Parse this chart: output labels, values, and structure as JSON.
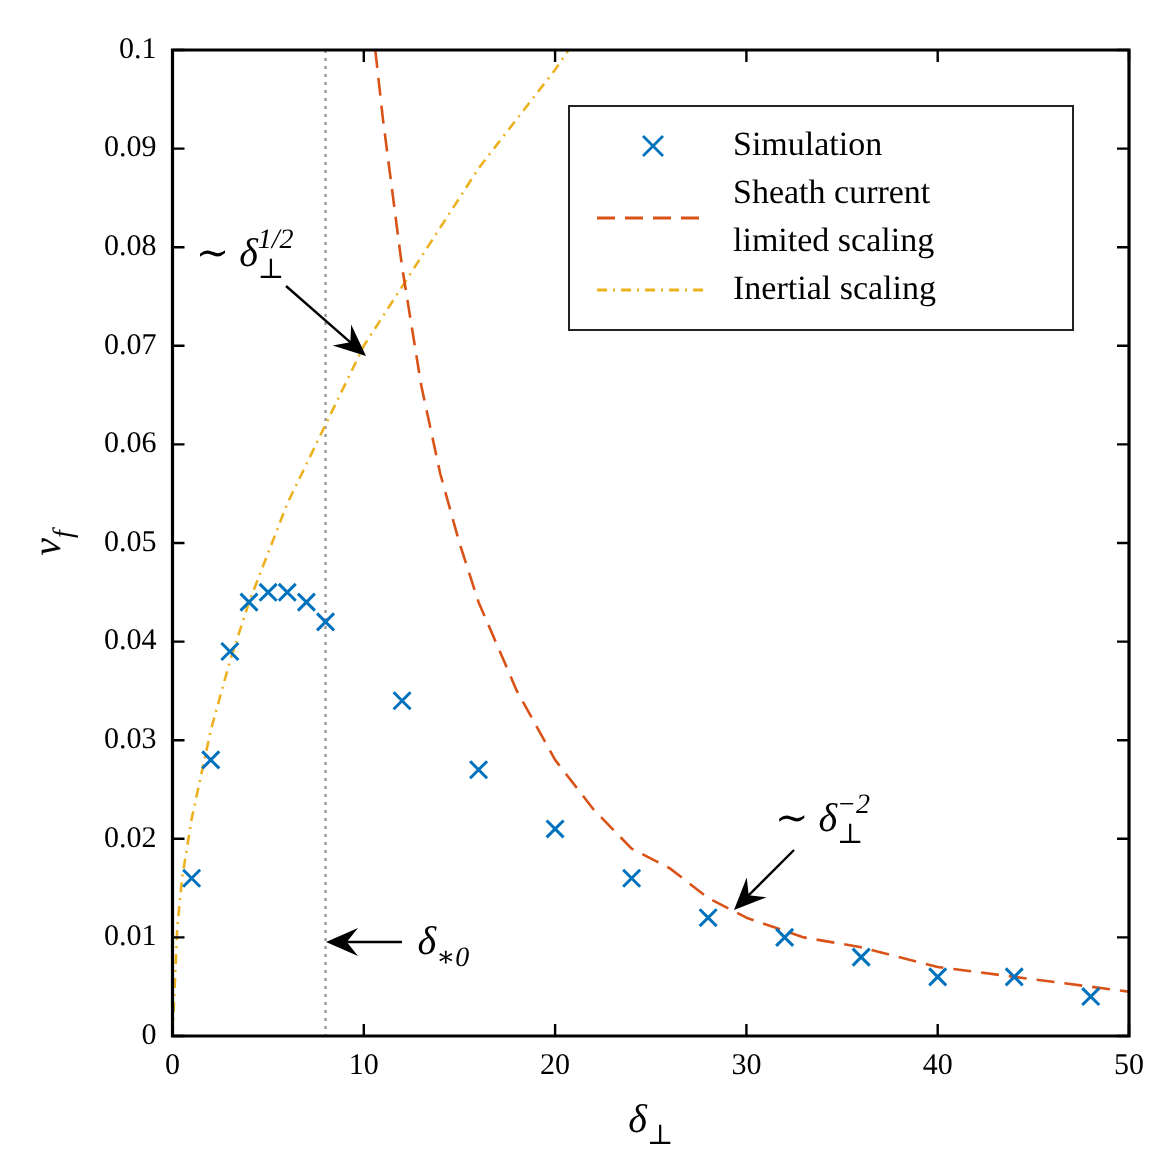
{
  "chart_data": {
    "type": "scatter",
    "xlabel": "δ$_{⊥}$",
    "ylabel": "v$_{f}$",
    "xlim": [
      0,
      50
    ],
    "xticks": [
      0,
      10,
      20,
      30,
      40,
      50
    ],
    "ylim": [
      0,
      0.1
    ],
    "yticks": [
      0,
      0.01,
      0.02,
      0.03,
      0.04,
      0.05,
      0.06,
      0.07,
      0.08,
      0.09,
      0.1
    ],
    "grid": false,
    "legend": "top right",
    "series": [
      {
        "name": "Simulation",
        "color": "#0072bd",
        "marker": "cross",
        "x": [
          1,
          2,
          3,
          4,
          5,
          6,
          7,
          8,
          12,
          16,
          20,
          24,
          28,
          32,
          36,
          40,
          44,
          48
        ],
        "values": [
          0.016,
          0.028,
          0.039,
          0.044,
          0.045,
          0.045,
          0.044,
          0.042,
          0.034,
          0.027,
          0.021,
          0.016,
          0.012,
          0.01,
          0.008,
          0.006,
          0.006,
          0.004
        ]
      },
      {
        "name": "Sheath current limited scaling",
        "type": "line",
        "color": "#d95319",
        "marker": "none",
        "line_style": "dashed",
        "x": [
          10.6,
          11,
          12,
          13,
          14,
          15,
          16,
          18,
          20,
          22,
          24,
          26,
          28,
          30,
          33,
          36,
          40,
          44,
          48,
          50
        ],
        "values": [
          0.1,
          0.093,
          0.078,
          0.066,
          0.057,
          0.05,
          0.044,
          0.035,
          0.028,
          0.023,
          0.019,
          0.017,
          0.014,
          0.012,
          0.01,
          0.009,
          0.007,
          0.006,
          0.005,
          0.0045
        ]
      },
      {
        "name": "Inertial scaling",
        "type": "line",
        "color": "#edb120",
        "marker": "none",
        "line_style": "dotted",
        "x": [
          0,
          0.25,
          0.5,
          1,
          2,
          3,
          4,
          6,
          8,
          10,
          12,
          14,
          16,
          18,
          20,
          20.7
        ],
        "values": [
          0,
          0.011,
          0.016,
          0.022,
          0.031,
          0.038,
          0.044,
          0.054,
          0.062,
          0.07,
          0.076,
          0.082,
          0.088,
          0.093,
          0.098,
          0.1
        ]
      }
    ],
    "ref_lines": [
      {
        "axis": "x",
        "value": 8,
        "color": "#999999",
        "line_style": "dotted"
      }
    ],
    "annotations": [
      {
        "text": "∼ δ$_{⊥}$$^{1/2}$",
        "x": 10.1,
        "y": 0.069
      },
      {
        "text": "∼ δ$_{⊥}$$^{−2}$",
        "x": 29.4,
        "y": 0.0127
      },
      {
        "text": "δ$_{∗0}$",
        "x": 8,
        "y": 0.0095
      }
    ]
  }
}
